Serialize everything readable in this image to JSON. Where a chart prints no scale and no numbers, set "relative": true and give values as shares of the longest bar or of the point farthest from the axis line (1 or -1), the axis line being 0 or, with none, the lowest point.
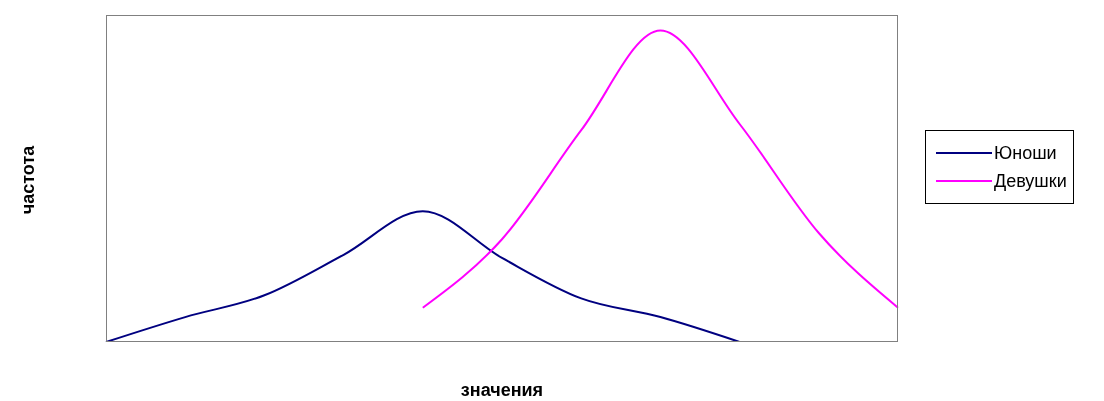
{
  "chart_data": {
    "type": "line",
    "relative": true,
    "xlabel": "значения",
    "ylabel": "частота",
    "legend": "right",
    "marker": "none",
    "line_style": "solid",
    "grid": false,
    "categories": [
      null,
      null,
      null,
      null,
      null,
      null,
      null,
      null,
      null,
      null,
      null
    ],
    "series": [
      {
        "name": "Юноши",
        "color": "#000080",
        "values": [
          0,
          0.08,
          0.15,
          0.28,
          0.42,
          0.27,
          0.14,
          0.08,
          0,
          null,
          null
        ]
      },
      {
        "name": "Девушки",
        "color": "#ff00ff",
        "values": [
          null,
          null,
          null,
          null,
          0.11,
          0.33,
          0.68,
          1,
          0.7,
          0.35,
          0.11
        ]
      }
    ]
  }
}
